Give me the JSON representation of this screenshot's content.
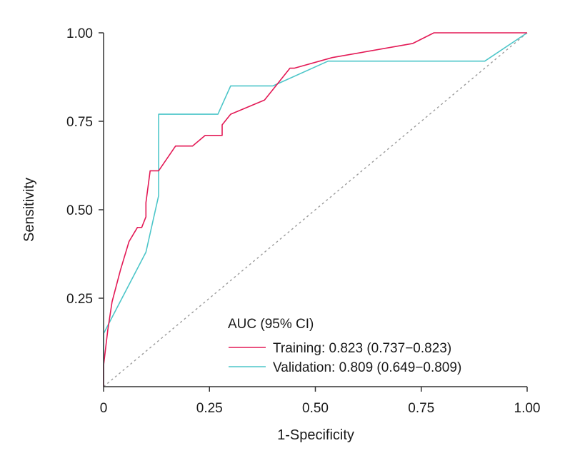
{
  "chart_data": {
    "type": "line",
    "title": "",
    "xlabel": "1-Specificity",
    "ylabel": "Sensitivity",
    "xlim": [
      0,
      1
    ],
    "ylim": [
      0,
      1
    ],
    "x_ticks": [
      0,
      0.25,
      0.5,
      0.75,
      1.0
    ],
    "x_tick_labels": [
      "0",
      "0.25",
      "0.50",
      "0.75",
      "1.00"
    ],
    "y_ticks": [
      0.25,
      0.5,
      0.75,
      1.0
    ],
    "y_tick_labels": [
      "0.25",
      "0.50",
      "0.75",
      "1.00"
    ],
    "legend": {
      "title": "AUC (95% CI)",
      "placement": "bottom-right",
      "entries": [
        {
          "label": "Training: 0.823 (0.737−0.823)",
          "series": 0
        },
        {
          "label": "Validation: 0.809 (0.649−0.809)",
          "series": 1
        }
      ]
    },
    "reference_line": {
      "name": "chance",
      "x": [
        0,
        1
      ],
      "y": [
        0,
        1
      ],
      "color": "#9a9a9a",
      "style": "dotted"
    },
    "series": [
      {
        "name": "Training",
        "color": "#e31a56",
        "x": [
          0,
          0,
          0.01,
          0.02,
          0.04,
          0.06,
          0.07,
          0.08,
          0.09,
          0.1,
          0.1,
          0.11,
          0.13,
          0.17,
          0.21,
          0.24,
          0.28,
          0.28,
          0.3,
          0.38,
          0.4,
          0.44,
          0.45,
          0.54,
          0.73,
          0.78,
          1.0
        ],
        "y": [
          0,
          0.06,
          0.16,
          0.24,
          0.33,
          0.41,
          0.43,
          0.45,
          0.45,
          0.48,
          0.52,
          0.61,
          0.61,
          0.68,
          0.68,
          0.71,
          0.71,
          0.74,
          0.77,
          0.81,
          0.84,
          0.9,
          0.9,
          0.93,
          0.97,
          1.0,
          1.0
        ]
      },
      {
        "name": "Validation",
        "color": "#4dc6c9",
        "x": [
          0,
          0,
          0.1,
          0.13,
          0.13,
          0.27,
          0.3,
          0.4,
          0.53,
          0.9,
          1.0
        ],
        "y": [
          0,
          0.15,
          0.38,
          0.54,
          0.77,
          0.77,
          0.85,
          0.85,
          0.92,
          0.92,
          1.0
        ]
      }
    ]
  }
}
